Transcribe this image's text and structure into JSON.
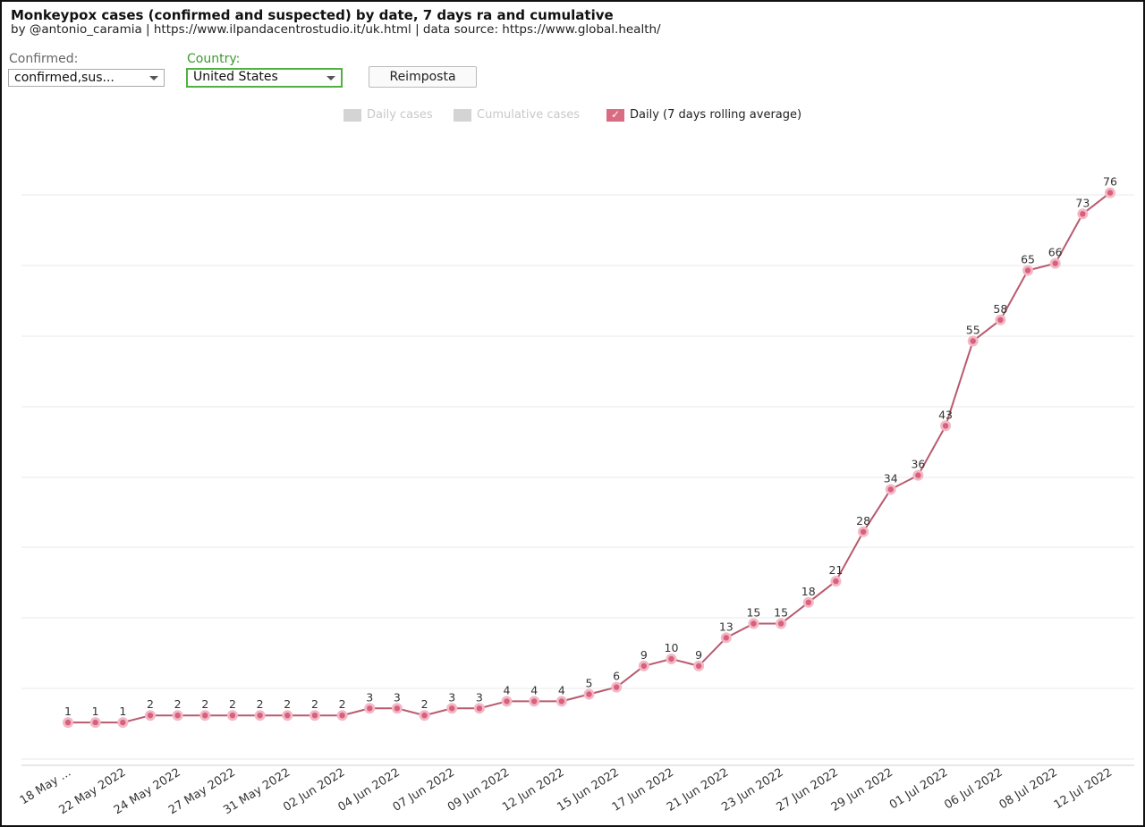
{
  "header": {
    "title": "Monkeypox cases (confirmed and suspected) by date, 7 days ra and cumulative",
    "subtitle": "by @antonio_caramia | https://www.ilpandacentrostudio.it/uk.html | data source: https://www.global.health/"
  },
  "controls": {
    "confirmed_label": "Confirmed:",
    "confirmed_value": "confirmed,sus...",
    "country_label": "Country:",
    "country_value": "United States",
    "reset_label": "Reimposta"
  },
  "legend": {
    "daily": "Daily cases",
    "cumulative": "Cumulative cases",
    "rolling": "Daily (7 days rolling average)"
  },
  "colors": {
    "line": "#b85a6e",
    "marker": "#d9607c",
    "marker_halo": "#f2b8c6",
    "grid": "#e8e8e8"
  },
  "chart_data": {
    "type": "line",
    "title": "Monkeypox cases (confirmed and suspected) by date, 7 days ra and cumulative",
    "series": [
      {
        "name": "Daily (7 days rolling average)",
        "values": [
          1,
          1,
          1,
          2,
          2,
          2,
          2,
          2,
          2,
          2,
          2,
          3,
          3,
          2,
          3,
          3,
          4,
          4,
          4,
          5,
          6,
          9,
          10,
          9,
          13,
          15,
          15,
          18,
          21,
          28,
          34,
          36,
          43,
          55,
          58,
          65,
          66,
          73,
          76
        ]
      }
    ],
    "x_tick_labels": [
      "18 May ...",
      "22 May 2022",
      "24 May 2022",
      "27 May 2022",
      "31 May 2022",
      "02 Jun 2022",
      "04 Jun 2022",
      "07 Jun 2022",
      "09 Jun 2022",
      "12 Jun 2022",
      "15 Jun 2022",
      "17 Jun 2022",
      "21 Jun 2022",
      "23 Jun 2022",
      "27 Jun 2022",
      "29 Jun 2022",
      "01 Jul 2022",
      "06 Jul 2022",
      "08 Jul 2022",
      "12 Jul 2022"
    ],
    "ylim": [
      -5,
      80
    ],
    "grid": true,
    "legend_position": "top-center"
  }
}
